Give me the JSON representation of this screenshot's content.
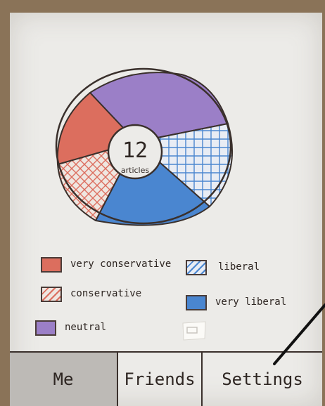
{
  "chart": {
    "center_count": "12",
    "center_label": "articles",
    "segments": [
      {
        "name": "neutral",
        "color": "#9b7fc7",
        "pattern": "solid"
      },
      {
        "name": "liberal",
        "color": "#4a86d0",
        "pattern": "hatch"
      },
      {
        "name": "very liberal",
        "color": "#4a86d0",
        "pattern": "solid"
      },
      {
        "name": "conservative",
        "color": "#dc6e5e",
        "pattern": "hatch"
      },
      {
        "name": "very conservative",
        "color": "#dc6e5e",
        "pattern": "solid"
      }
    ]
  },
  "legend": {
    "very_conservative": "very conservative",
    "liberal": "liberal",
    "conservative": "conservative",
    "very_liberal": "very liberal",
    "neutral": "neutral"
  },
  "colors": {
    "very_conservative": "#dc6e5e",
    "conservative": "#dc6e5e",
    "neutral": "#9b7fc7",
    "liberal": "#4a86d0",
    "very_liberal": "#4a86d0"
  },
  "tabs": {
    "me": "Me",
    "friends": "Friends",
    "settings": "Settings"
  }
}
